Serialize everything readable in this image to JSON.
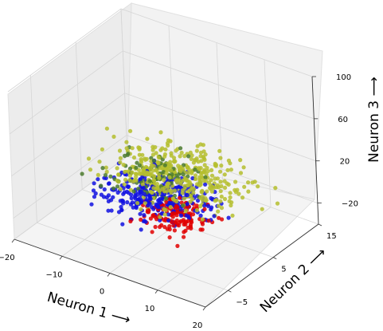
{
  "chart_data": {
    "type": "scatter",
    "projection": "3d",
    "xlabel": "Neuron 1 ⟶",
    "ylabel": "Neuron 2 ⟶",
    "zlabel": "Neuron 3 ⟶",
    "xlim": [
      -20,
      20
    ],
    "ylim": [
      -10,
      15
    ],
    "zlim": [
      -40,
      100
    ],
    "xticks": [
      "−20",
      "−10",
      "0",
      "10",
      "20"
    ],
    "yticks": [
      "−5",
      "5",
      "15"
    ],
    "zticks": [
      "−20",
      "20",
      "60",
      "100"
    ],
    "grid": true,
    "series": [
      {
        "color": "#e00000",
        "x_range": [
          -5,
          15
        ],
        "y_range": [
          -6,
          4
        ],
        "z_range": [
          -15,
          5
        ]
      },
      {
        "color": "#1010e0",
        "x_range": [
          -15,
          15
        ],
        "y_range": [
          -8,
          10
        ],
        "z_range": [
          -15,
          10
        ]
      },
      {
        "color": "#b5be2e",
        "x_range": [
          -20,
          20
        ],
        "y_range": [
          -5,
          15
        ],
        "z_range": [
          -10,
          20
        ]
      },
      {
        "color": "#4b7a2e",
        "x_range": [
          -15,
          10
        ],
        "y_range": [
          -5,
          12
        ],
        "z_range": [
          -5,
          15
        ]
      }
    ]
  }
}
